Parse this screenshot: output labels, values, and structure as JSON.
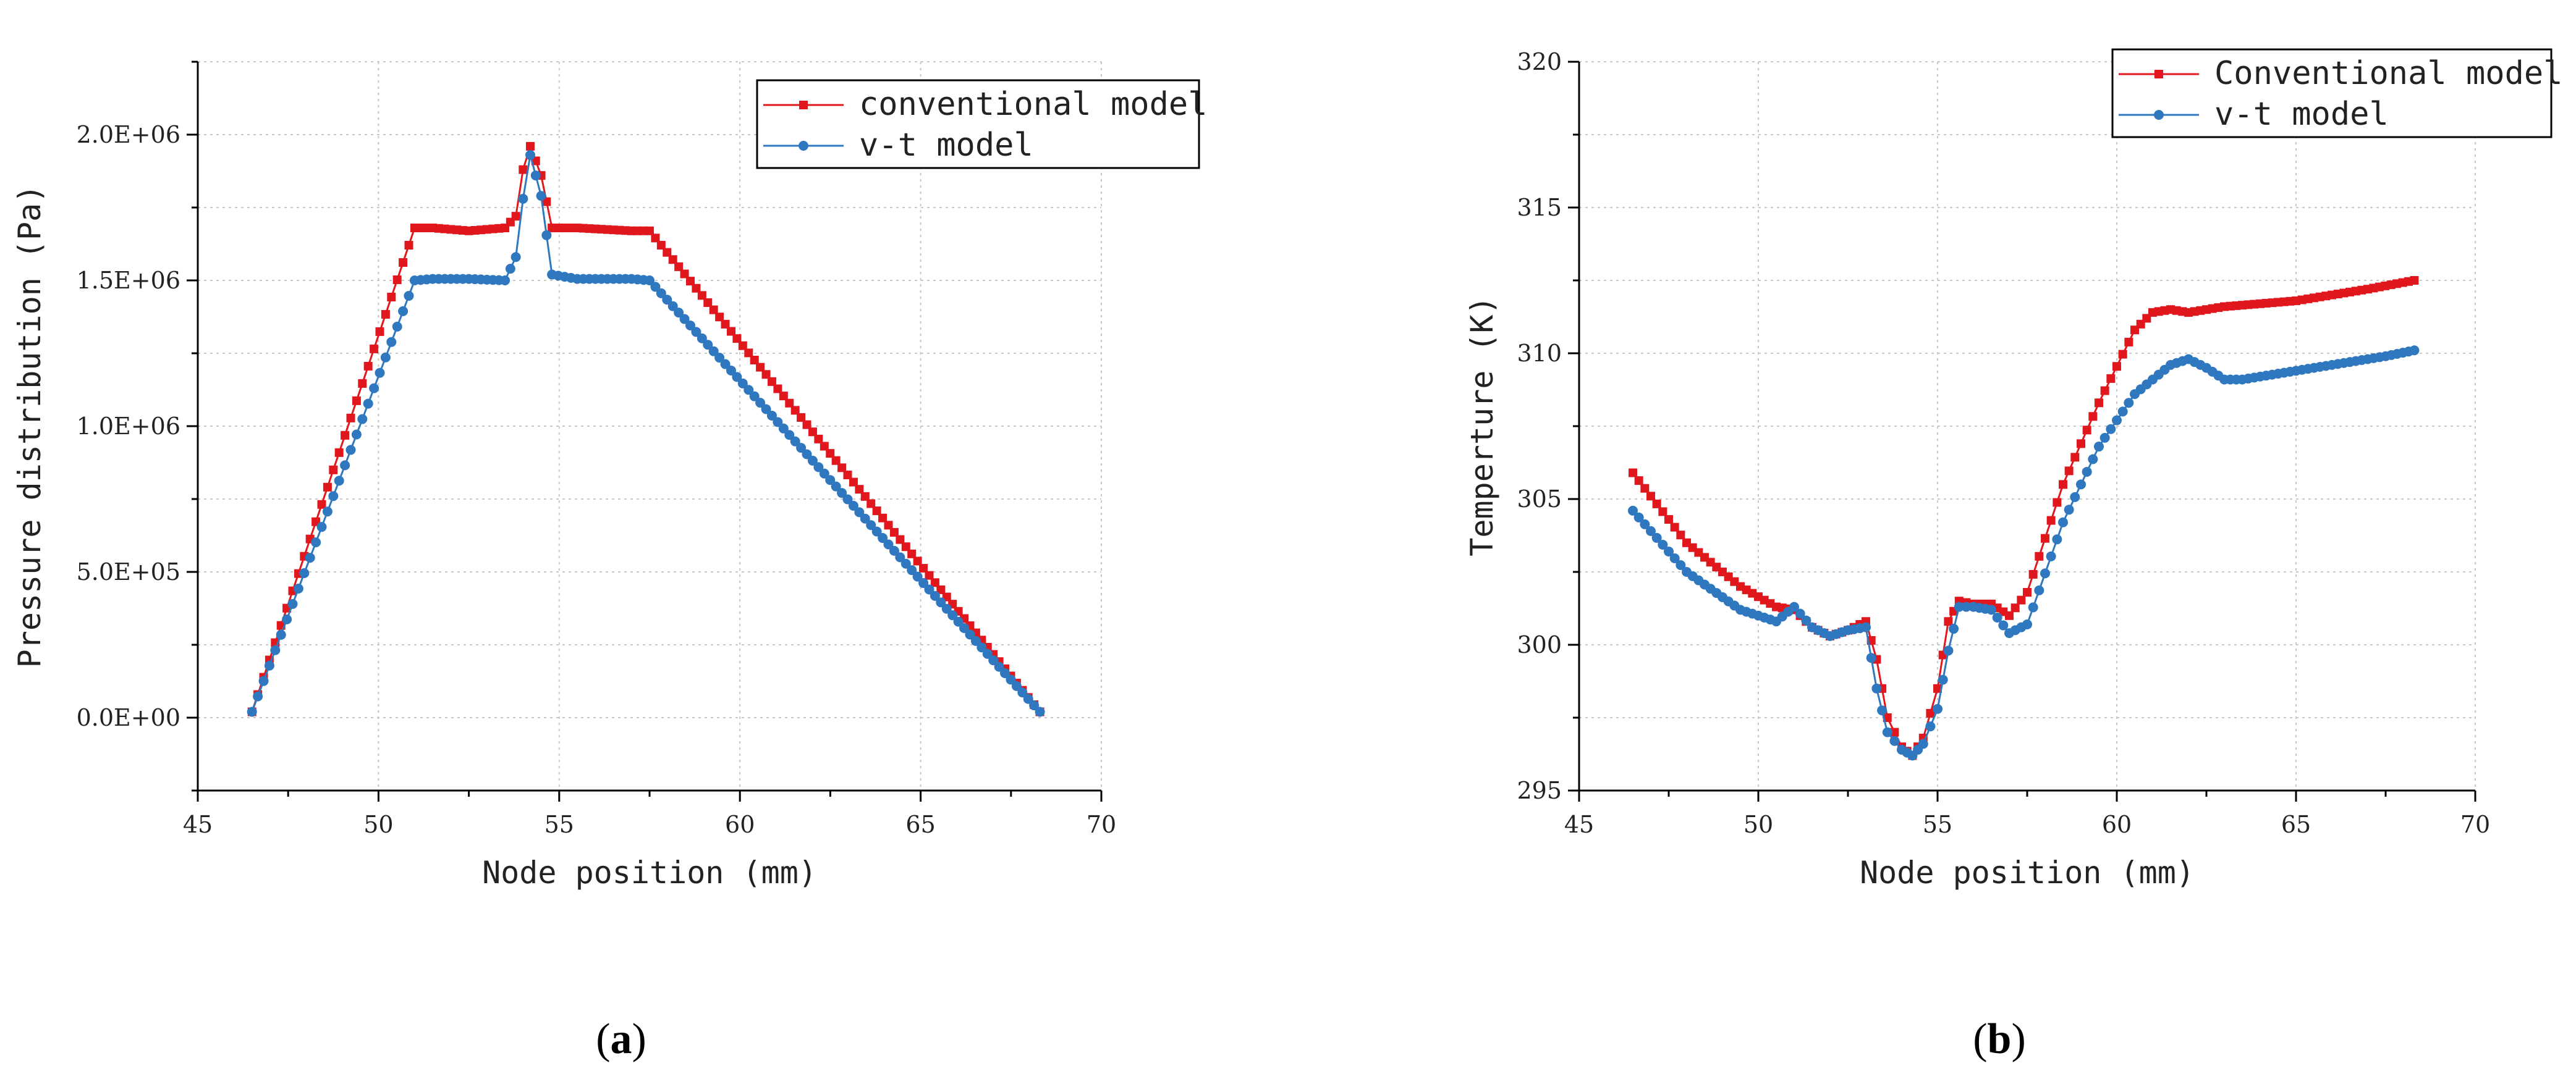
{
  "colors": {
    "conventional": "#e0171d",
    "vt": "#2f78c0"
  },
  "chart_data": [
    {
      "type": "line",
      "panel_label": "a",
      "xlabel": "Node position (mm)",
      "ylabel": "Pressure distribution (Pa)",
      "xlim": [
        45,
        70
      ],
      "ylim": [
        -250000,
        2250000
      ],
      "x_ticks": [
        45,
        50,
        55,
        60,
        65,
        70
      ],
      "x_tick_labels": [
        "45",
        "50",
        "55",
        "60",
        "65",
        "70"
      ],
      "y_ticks": [
        0,
        500000,
        1000000,
        1500000,
        2000000
      ],
      "y_tick_labels": [
        "0.0E+00",
        "5.0E+05",
        "1.0E+06",
        "1.5E+06",
        "2.0E+06"
      ],
      "grid": true,
      "legend": "top-right",
      "series": [
        {
          "name": "conventional model",
          "color_key": "conventional",
          "marker": "square",
          "x": [
            46.5,
            51.0,
            51.5,
            52.5,
            53.5,
            53.8,
            54.0,
            54.2,
            54.5,
            54.8,
            55.5,
            57.0,
            57.5,
            68.3
          ],
          "y": [
            20000,
            1680000,
            1680000,
            1670000,
            1680000,
            1720000,
            1880000,
            1960000,
            1860000,
            1680000,
            1680000,
            1670000,
            1670000,
            20000
          ]
        },
        {
          "name": "v-t model",
          "color_key": "vt",
          "marker": "circle",
          "x": [
            46.5,
            51.0,
            51.5,
            52.5,
            53.5,
            53.8,
            54.0,
            54.2,
            54.5,
            54.8,
            55.5,
            57.0,
            57.5,
            68.3
          ],
          "y": [
            20000,
            1500000,
            1505000,
            1505000,
            1500000,
            1580000,
            1780000,
            1930000,
            1790000,
            1520000,
            1505000,
            1505000,
            1500000,
            20000
          ]
        }
      ]
    },
    {
      "type": "line",
      "panel_label": "b",
      "xlabel": "Node position (mm)",
      "ylabel": "Temperture (K)",
      "xlim": [
        45,
        70
      ],
      "ylim": [
        295,
        320
      ],
      "x_ticks": [
        45,
        50,
        55,
        60,
        65,
        70
      ],
      "x_tick_labels": [
        "45",
        "50",
        "55",
        "60",
        "65",
        "70"
      ],
      "y_ticks": [
        295,
        300,
        305,
        310,
        315,
        320
      ],
      "y_tick_labels": [
        "295",
        "300",
        "305",
        "310",
        "315",
        "320"
      ],
      "grid": true,
      "legend": "top-right",
      "series": [
        {
          "name": "Conventional model",
          "color_key": "conventional",
          "marker": "square",
          "x": [
            46.5,
            48.0,
            49.5,
            50.5,
            51.0,
            51.5,
            52.0,
            52.5,
            53.0,
            53.3,
            53.6,
            54.0,
            54.3,
            54.6,
            55.0,
            55.3,
            55.6,
            56.0,
            56.5,
            57.0,
            57.5,
            58.5,
            59.5,
            60.5,
            61.0,
            61.5,
            62.0,
            63.0,
            64.0,
            65.0,
            66.0,
            67.0,
            68.3
          ],
          "y": [
            305.9,
            303.5,
            302.0,
            301.3,
            301.2,
            300.6,
            300.3,
            300.5,
            300.8,
            299.5,
            297.5,
            296.5,
            296.2,
            296.8,
            298.5,
            300.8,
            301.5,
            301.4,
            301.4,
            301.0,
            301.8,
            305.5,
            308.3,
            310.8,
            311.4,
            311.5,
            311.4,
            311.6,
            311.7,
            311.8,
            312.0,
            312.2,
            312.5
          ]
        },
        {
          "name": "v-t model",
          "color_key": "vt",
          "marker": "circle",
          "x": [
            46.5,
            48.0,
            49.5,
            50.5,
            51.0,
            51.5,
            52.0,
            52.5,
            53.0,
            53.3,
            53.6,
            54.0,
            54.3,
            54.6,
            55.0,
            55.3,
            55.6,
            56.0,
            56.5,
            57.0,
            57.5,
            58.5,
            59.5,
            60.5,
            61.5,
            62.0,
            62.5,
            63.0,
            63.5,
            64.5,
            65.5,
            66.5,
            67.5,
            68.3
          ],
          "y": [
            304.6,
            302.5,
            301.2,
            300.8,
            301.3,
            300.6,
            300.3,
            300.5,
            300.6,
            298.5,
            297.0,
            296.4,
            296.2,
            296.6,
            297.8,
            299.8,
            301.3,
            301.3,
            301.2,
            300.4,
            300.7,
            304.2,
            306.8,
            308.6,
            309.6,
            309.8,
            309.5,
            309.1,
            309.1,
            309.3,
            309.5,
            309.7,
            309.9,
            310.1
          ]
        }
      ]
    }
  ]
}
